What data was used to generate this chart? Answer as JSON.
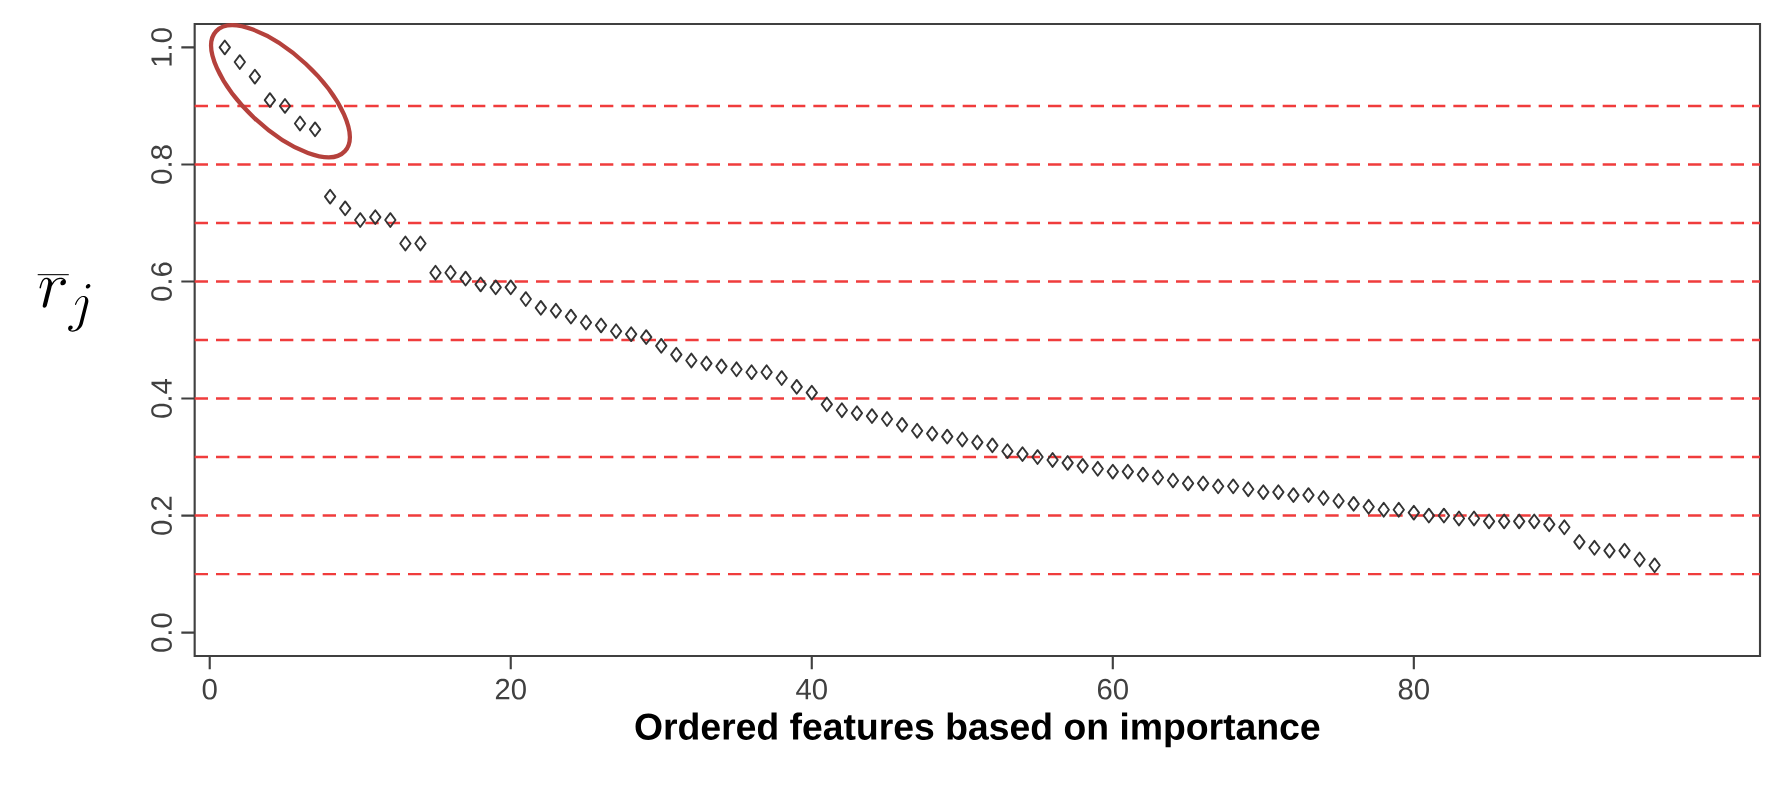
{
  "chart_data": {
    "type": "scatter",
    "xlabel": "Ordered features based on importance",
    "ylabel": "\\overline{r}_j",
    "x": [
      1,
      2,
      3,
      4,
      5,
      6,
      7,
      8,
      9,
      10,
      11,
      12,
      13,
      14,
      15,
      16,
      17,
      18,
      19,
      20,
      21,
      22,
      23,
      24,
      25,
      26,
      27,
      28,
      29,
      30,
      31,
      32,
      33,
      34,
      35,
      36,
      37,
      38,
      39,
      40,
      41,
      42,
      43,
      44,
      45,
      46,
      47,
      48,
      49,
      50,
      51,
      52,
      53,
      54,
      55,
      56,
      57,
      58,
      59,
      60,
      61,
      62,
      63,
      64,
      65,
      66,
      67,
      68,
      69,
      70,
      71,
      72,
      73,
      74,
      75,
      76,
      77,
      78,
      79,
      80,
      81,
      82,
      83,
      84,
      85,
      86,
      87,
      88,
      89,
      90,
      91,
      92,
      93,
      94,
      95,
      96
    ],
    "series": [
      {
        "color": "#333333",
        "values": [
          1.0,
          0.975,
          0.95,
          0.91,
          0.9,
          0.87,
          0.86,
          0.745,
          0.725,
          0.705,
          0.71,
          0.705,
          0.665,
          0.665,
          0.615,
          0.615,
          0.605,
          0.595,
          0.59,
          0.59,
          0.57,
          0.555,
          0.55,
          0.54,
          0.53,
          0.525,
          0.515,
          0.51,
          0.505,
          0.49,
          0.475,
          0.465,
          0.46,
          0.455,
          0.45,
          0.445,
          0.445,
          0.435,
          0.42,
          0.41,
          0.39,
          0.38,
          0.375,
          0.37,
          0.365,
          0.355,
          0.345,
          0.34,
          0.335,
          0.33,
          0.325,
          0.32,
          0.31,
          0.305,
          0.3,
          0.295,
          0.29,
          0.285,
          0.28,
          0.275,
          0.275,
          0.27,
          0.265,
          0.26,
          0.255,
          0.255,
          0.25,
          0.25,
          0.245,
          0.24,
          0.24,
          0.235,
          0.235,
          0.23,
          0.225,
          0.22,
          0.215,
          0.21,
          0.21,
          0.205,
          0.2,
          0.2,
          0.195,
          0.195,
          0.19,
          0.19,
          0.19,
          0.19,
          0.185,
          0.18,
          0.155,
          0.145,
          0.14,
          0.14,
          0.125,
          0.115
        ]
      }
    ],
    "xlim": [
      -1,
      103
    ],
    "ylim": [
      -0.04,
      1.04
    ],
    "xticks": [
      0,
      20,
      40,
      60,
      80
    ],
    "yticks": [
      {
        "value": 0,
        "label": "0.0"
      },
      {
        "value": 0.2,
        "label": "0.2"
      },
      {
        "value": 0.4,
        "label": "0.4"
      },
      {
        "value": 0.6,
        "label": "0.6"
      },
      {
        "value": 0.8,
        "label": "0.8"
      },
      {
        "value": 1,
        "label": "1.0"
      }
    ],
    "ref_lines": [
      {
        "axis": "y",
        "value": 0.1,
        "color": "#f03c3c",
        "line_style": "dashed"
      },
      {
        "axis": "y",
        "value": 0.2,
        "color": "#f03c3c",
        "line_style": "dashed"
      },
      {
        "axis": "y",
        "value": 0.3,
        "color": "#f03c3c",
        "line_style": "dashed"
      },
      {
        "axis": "y",
        "value": 0.4,
        "color": "#f03c3c",
        "line_style": "dashed"
      },
      {
        "axis": "y",
        "value": 0.5,
        "color": "#f03c3c",
        "line_style": "dashed"
      },
      {
        "axis": "y",
        "value": 0.6,
        "color": "#f03c3c",
        "line_style": "dashed"
      },
      {
        "axis": "y",
        "value": 0.7,
        "color": "#f03c3c",
        "line_style": "dashed"
      },
      {
        "axis": "y",
        "value": 0.8,
        "color": "#f03c3c",
        "line_style": "dashed"
      },
      {
        "axis": "y",
        "value": 0.9,
        "color": "#f03c3c",
        "line_style": "dashed"
      }
    ],
    "marker": "diamond",
    "grid": false
  }
}
